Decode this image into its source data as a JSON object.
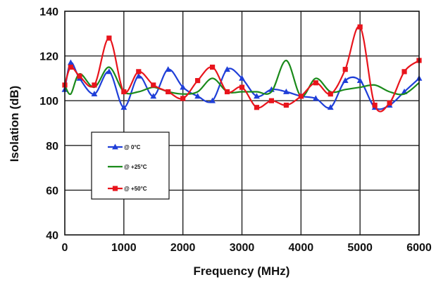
{
  "chart_data": {
    "type": "line",
    "xlabel": "Frequency (MHz)",
    "ylabel": "Isolation (dB)",
    "xlim": [
      0,
      6000
    ],
    "ylim": [
      40,
      140
    ],
    "xticks": [
      0,
      1000,
      2000,
      3000,
      4000,
      5000,
      6000
    ],
    "yticks": [
      40,
      60,
      80,
      100,
      120,
      140
    ],
    "grid": true,
    "legend_position": "left-middle",
    "series": [
      {
        "name": "@ 0°C",
        "color": "#1f3fd8",
        "marker": "triangle",
        "x": [
          0,
          100,
          250,
          500,
          750,
          1000,
          1250,
          1500,
          1750,
          2000,
          2250,
          2500,
          2750,
          3000,
          3250,
          3500,
          3750,
          4000,
          4250,
          4500,
          4750,
          5000,
          5250,
          5500,
          5750,
          6000
        ],
        "y": [
          105,
          117,
          110,
          103,
          113,
          97,
          111,
          102,
          114,
          106,
          102,
          100,
          114,
          110,
          102,
          105,
          104,
          102,
          101,
          97,
          109,
          109,
          97,
          98,
          104,
          110
        ]
      },
      {
        "name": "@ +25°C",
        "color": "#1a8a1a",
        "marker": "none",
        "x": [
          0,
          100,
          250,
          500,
          750,
          1000,
          1250,
          1500,
          1750,
          2000,
          2250,
          2500,
          2750,
          3000,
          3250,
          3500,
          3750,
          4000,
          4250,
          4500,
          4750,
          5000,
          5250,
          5500,
          5750,
          6000
        ],
        "y": [
          107,
          103,
          112,
          106,
          115,
          104,
          104,
          106,
          104,
          103,
          104,
          110,
          104,
          104,
          104,
          104,
          118,
          102,
          110,
          104,
          105,
          106,
          107,
          104,
          103,
          108
        ]
      },
      {
        "name": "@ +50°C",
        "color": "#e8141c",
        "marker": "square",
        "x": [
          0,
          100,
          250,
          500,
          750,
          1000,
          1250,
          1500,
          1750,
          2000,
          2250,
          2500,
          2750,
          3000,
          3250,
          3500,
          3750,
          4000,
          4250,
          4500,
          4750,
          5000,
          5250,
          5500,
          5750,
          6000
        ],
        "y": [
          107,
          115,
          111,
          107,
          128,
          104,
          113,
          107,
          104,
          101,
          109,
          115,
          104,
          106,
          97,
          100,
          98,
          102,
          108,
          103,
          114,
          133,
          98,
          99,
          113,
          118
        ]
      }
    ]
  }
}
